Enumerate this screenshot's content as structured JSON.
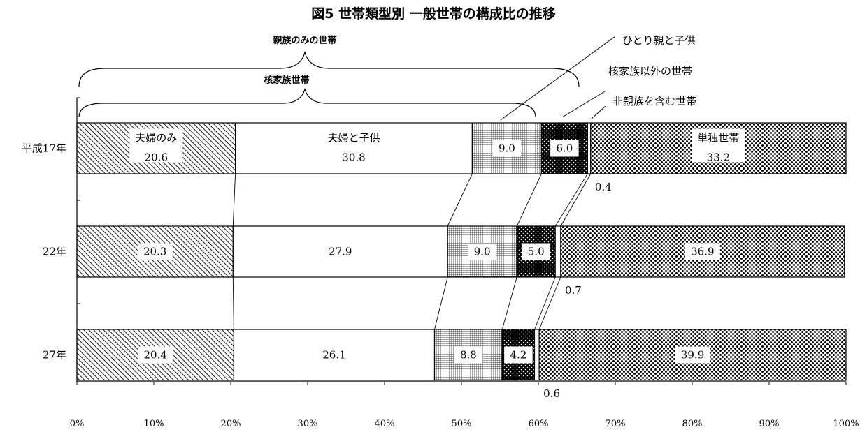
{
  "title": "図5 世帯類型別 一般世帯の構成比の推移",
  "brackets": {
    "kin_only": "親族のみの世帯",
    "nuclear": "核家族世帯"
  },
  "callouts": {
    "single_parent": "ひとり親と子供",
    "other_kin": "核家族以外の世帯",
    "non_kin": "非親族を含む世帯"
  },
  "chart_data": {
    "type": "bar",
    "orientation": "horizontal",
    "stacked": true,
    "percent": true,
    "title": "図5 世帯類型別 一般世帯の構成比の推移",
    "categories": [
      "平成17年",
      "22年",
      "27年"
    ],
    "series": [
      {
        "name": "夫婦のみ",
        "values": [
          20.6,
          20.3,
          20.4
        ],
        "color": "#ffffff",
        "pattern": "diagonal-hatch"
      },
      {
        "name": "夫婦と子供",
        "values": [
          30.8,
          27.9,
          26.1
        ],
        "color": "#ffffff",
        "pattern": "none"
      },
      {
        "name": "ひとり親と子供",
        "values": [
          9.0,
          9.0,
          8.8
        ],
        "color": "#ffffff",
        "pattern": "fine-grid"
      },
      {
        "name": "核家族以外の世帯",
        "values": [
          6.0,
          5.0,
          4.2
        ],
        "color": "#000000",
        "pattern": "dark-dots"
      },
      {
        "name": "非親族を含む世帯",
        "values": [
          0.4,
          0.7,
          0.6
        ],
        "color": "#ffffff",
        "pattern": "none"
      },
      {
        "name": "単独世帯",
        "values": [
          33.2,
          36.9,
          39.9
        ],
        "color": "#ffffff",
        "pattern": "checker-dots"
      }
    ],
    "label_text": {
      "夫婦のみ": [
        "20.6",
        "20.3",
        "20.4"
      ],
      "夫婦と子供": [
        "30.8",
        "27.9",
        "26.1"
      ],
      "ひとり親と子供": [
        "9.0",
        "9.0",
        "8.8"
      ],
      "核家族以外の世帯": [
        "6.0",
        "5.0",
        "4.2"
      ],
      "非親族を含む世帯": [
        "0.4",
        "0.7",
        "0.6"
      ],
      "単独世帯": [
        "33.2",
        "36.9",
        "39.9"
      ]
    },
    "inline_series_names": {
      "夫婦のみ": "夫婦のみ",
      "夫婦と子供": "夫婦と子供",
      "単独世帯": "単独世帯"
    },
    "xlim": [
      0,
      100
    ],
    "xticks": [
      "0%",
      "10%",
      "20%",
      "30%",
      "40%",
      "50%",
      "60%",
      "70%",
      "80%",
      "90%",
      "100%"
    ],
    "grid": false,
    "legend": "none"
  }
}
